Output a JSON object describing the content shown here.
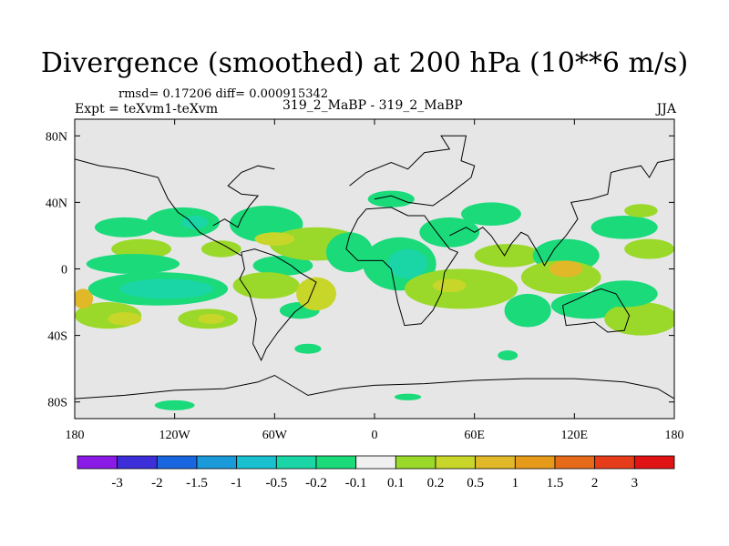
{
  "title": "Divergence (smoothed) at 200 hPa (10**6 m/s)",
  "stats_text": "rmsd= 0.17206 diff= 0.000915342",
  "left_label": "Expt = teXvm1-teXvm",
  "center_label": "319_2_MaBP - 319_2_MaBP",
  "right_label": "JJA",
  "colors": {
    "background": "#e6e6e6",
    "coast": "#000000",
    "levels": [
      "#8a1ae6",
      "#3c2ed9",
      "#1a66e0",
      "#1a9ad9",
      "#1ac0d0",
      "#1ad6a6",
      "#1ada7a",
      "#f0f0f0",
      "#9ad92a",
      "#c8d62a",
      "#e0b828",
      "#e69a1a",
      "#e66a1a",
      "#e63c1a",
      "#e01414"
    ]
  },
  "chart_data": {
    "type": "heatmap",
    "title": "Divergence (smoothed) at 200 hPa (10**6 m/s)",
    "variable": "Divergence",
    "units": "10**6 m/s",
    "level": "200 hPa",
    "season": "JJA",
    "rmsd": 0.17206,
    "diff": 0.000915342,
    "xlim": [
      -180,
      180
    ],
    "ylim": [
      -90,
      90
    ],
    "x_ticks": [
      -180,
      -120,
      -60,
      0,
      60,
      120,
      180
    ],
    "x_tick_labels": [
      "180",
      "120W",
      "60W",
      "0",
      "60E",
      "120E",
      "180"
    ],
    "y_ticks": [
      80,
      40,
      0,
      -40,
      -80
    ],
    "y_tick_labels": [
      "80N",
      "40N",
      "0",
      "40S",
      "80S"
    ],
    "contour_levels": [
      -3,
      -2,
      -1.5,
      -1,
      -0.5,
      -0.2,
      -0.1,
      0.1,
      0.2,
      0.5,
      1,
      1.5,
      2,
      3
    ],
    "colorbar_labels": [
      "-3",
      "-2",
      "-1.5",
      "-1",
      "-0.5",
      "-0.2",
      "-0.1",
      "0.1",
      "0.2",
      "0.5",
      "1",
      "1.5",
      "2",
      "3"
    ],
    "blobs": [
      {
        "lon": -150,
        "lat": 25,
        "rx": 18,
        "ry": 6,
        "level": 6
      },
      {
        "lon": -115,
        "lat": 28,
        "rx": 22,
        "ry": 9,
        "level": 6
      },
      {
        "lon": -108,
        "lat": 28,
        "rx": 8,
        "ry": 4,
        "level": 5
      },
      {
        "lon": -65,
        "lat": 27,
        "rx": 22,
        "ry": 11,
        "level": 6
      },
      {
        "lon": -92,
        "lat": 12,
        "rx": 12,
        "ry": 5,
        "level": 8
      },
      {
        "lon": -140,
        "lat": 12,
        "rx": 18,
        "ry": 6,
        "level": 8
      },
      {
        "lon": -145,
        "lat": 3,
        "rx": 28,
        "ry": 6,
        "level": 6
      },
      {
        "lon": -130,
        "lat": -12,
        "rx": 42,
        "ry": 10,
        "level": 6
      },
      {
        "lon": -125,
        "lat": -12,
        "rx": 28,
        "ry": 6,
        "level": 5
      },
      {
        "lon": -55,
        "lat": 2,
        "rx": 18,
        "ry": 6,
        "level": 6
      },
      {
        "lon": -65,
        "lat": -10,
        "rx": 20,
        "ry": 8,
        "level": 8
      },
      {
        "lon": -45,
        "lat": -25,
        "rx": 12,
        "ry": 5,
        "level": 6
      },
      {
        "lon": -35,
        "lat": -15,
        "rx": 12,
        "ry": 10,
        "level": 9
      },
      {
        "lon": -160,
        "lat": -28,
        "rx": 20,
        "ry": 8,
        "level": 8
      },
      {
        "lon": -150,
        "lat": -30,
        "rx": 10,
        "ry": 4,
        "level": 9
      },
      {
        "lon": -100,
        "lat": -30,
        "rx": 18,
        "ry": 6,
        "level": 8
      },
      {
        "lon": -98,
        "lat": -30,
        "rx": 8,
        "ry": 3,
        "level": 9
      },
      {
        "lon": -35,
        "lat": 15,
        "rx": 28,
        "ry": 10,
        "level": 8
      },
      {
        "lon": -60,
        "lat": 18,
        "rx": 12,
        "ry": 4,
        "level": 9
      },
      {
        "lon": -15,
        "lat": 10,
        "rx": 14,
        "ry": 12,
        "level": 6
      },
      {
        "lon": 15,
        "lat": 3,
        "rx": 22,
        "ry": 16,
        "level": 6
      },
      {
        "lon": 20,
        "lat": 3,
        "rx": 12,
        "ry": 9,
        "level": 5
      },
      {
        "lon": 10,
        "lat": 42,
        "rx": 14,
        "ry": 5,
        "level": 6
      },
      {
        "lon": 45,
        "lat": 22,
        "rx": 18,
        "ry": 9,
        "level": 6
      },
      {
        "lon": 70,
        "lat": 33,
        "rx": 18,
        "ry": 7,
        "level": 6
      },
      {
        "lon": 52,
        "lat": -12,
        "rx": 34,
        "ry": 12,
        "level": 8
      },
      {
        "lon": 45,
        "lat": -10,
        "rx": 10,
        "ry": 4,
        "level": 9
      },
      {
        "lon": 80,
        "lat": 8,
        "rx": 20,
        "ry": 7,
        "level": 8
      },
      {
        "lon": 115,
        "lat": 8,
        "rx": 20,
        "ry": 10,
        "level": 6
      },
      {
        "lon": 112,
        "lat": -5,
        "rx": 24,
        "ry": 10,
        "level": 8
      },
      {
        "lon": 115,
        "lat": 0,
        "rx": 10,
        "ry": 5,
        "level": 10
      },
      {
        "lon": 92,
        "lat": -25,
        "rx": 14,
        "ry": 10,
        "level": 6
      },
      {
        "lon": 128,
        "lat": -22,
        "rx": 22,
        "ry": 8,
        "level": 6
      },
      {
        "lon": 160,
        "lat": -30,
        "rx": 22,
        "ry": 10,
        "level": 8
      },
      {
        "lon": 150,
        "lat": 25,
        "rx": 20,
        "ry": 7,
        "level": 6
      },
      {
        "lon": 165,
        "lat": 12,
        "rx": 15,
        "ry": 6,
        "level": 8
      },
      {
        "lon": 150,
        "lat": -15,
        "rx": 20,
        "ry": 8,
        "level": 6
      },
      {
        "lon": 160,
        "lat": 35,
        "rx": 10,
        "ry": 4,
        "level": 8
      },
      {
        "lon": -40,
        "lat": -48,
        "rx": 8,
        "ry": 3,
        "level": 6
      },
      {
        "lon": 80,
        "lat": -52,
        "rx": 6,
        "ry": 3,
        "level": 6
      },
      {
        "lon": -120,
        "lat": -82,
        "rx": 12,
        "ry": 3,
        "level": 6
      },
      {
        "lon": 20,
        "lat": -77,
        "rx": 8,
        "ry": 2,
        "level": 6
      },
      {
        "lon": -175,
        "lat": -18,
        "rx": 6,
        "ry": 6,
        "level": 10
      }
    ]
  }
}
